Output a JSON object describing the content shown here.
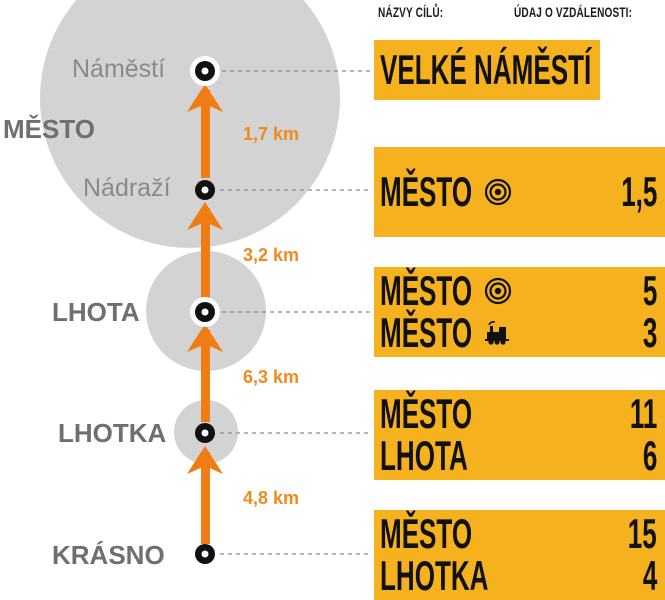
{
  "headers": {
    "names": "NÁZVY CÍLŮ:",
    "distance": "ÚDAJ O VZDÁLENOSTI:"
  },
  "places": {
    "namesti": "Náměstí",
    "mesto": "MĚSTO",
    "nadrazi": "Nádraží",
    "lhota": "LHOTA",
    "lhotka": "LHOTKA",
    "krasno": "KRÁSNO"
  },
  "segments": [
    "1,7 km",
    "3,2 km",
    "6,3 km",
    "4,8 km"
  ],
  "signs": [
    {
      "rows": [
        {
          "name": "VELKÉ NÁMĚSTÍ",
          "icon": "",
          "value": ""
        }
      ]
    },
    {
      "rows": [
        {
          "name": "MĚSTO",
          "icon": "target-icon",
          "value": "1,5"
        }
      ]
    },
    {
      "rows": [
        {
          "name": "MĚSTO",
          "icon": "target-icon",
          "value": "5"
        },
        {
          "name": "MĚSTO",
          "icon": "train-icon",
          "value": "3"
        }
      ]
    },
    {
      "rows": [
        {
          "name": "MĚSTO",
          "icon": "",
          "value": "11"
        },
        {
          "name": "LHOTA",
          "icon": "",
          "value": "6"
        }
      ]
    },
    {
      "rows": [
        {
          "name": "MĚSTO",
          "icon": "",
          "value": "15"
        },
        {
          "name": "LHOTKA",
          "icon": "",
          "value": "4"
        }
      ]
    }
  ],
  "colors": {
    "sign": "#f5b21e",
    "route": "#f07d14",
    "area": "#d3d3d3",
    "node": "#111111"
  }
}
